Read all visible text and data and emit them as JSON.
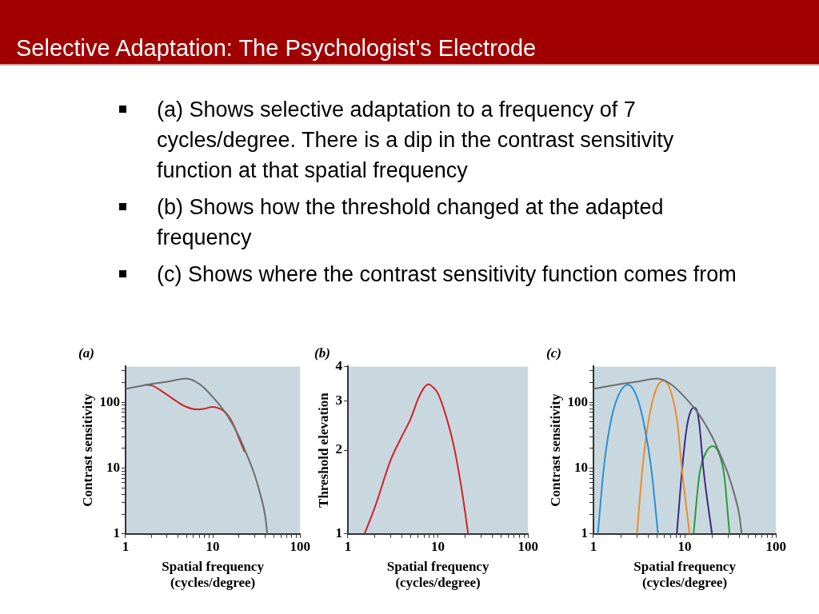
{
  "chart_data": [
    {
      "type": "line",
      "title": "(a)",
      "xlabel": "Spatial frequency\n(cycles/degree)",
      "ylabel": "Contrast sensitivity",
      "log": "xy",
      "marker": "none",
      "legend": false,
      "annotations": [
        "Selective Adaptation: The Psychologist’s Electrode",
        "(a) Shows selective adaptation to a frequency of 7 cycles/degree. There is a dip in the contrast sensitivity function at that spatial frequency",
        "(b) Shows how the threshold changed at the adapted frequency",
        "(c) Shows where the contrast sensitivity function comes from"
      ],
      "xlim": [
        1,
        100
      ],
      "xticks": [
        1,
        {
          "value": 2,
          "label": null
        },
        {
          "value": 3,
          "label": null
        },
        {
          "value": 4,
          "label": null
        },
        {
          "value": 5,
          "label": null
        },
        {
          "value": 6,
          "label": null
        },
        {
          "value": 7,
          "label": null
        },
        {
          "value": 8,
          "label": null
        },
        {
          "value": 9,
          "label": null
        },
        10,
        {
          "value": 20,
          "label": null
        },
        {
          "value": 30,
          "label": null
        },
        {
          "value": 40,
          "label": null
        },
        {
          "value": 50,
          "label": null
        },
        {
          "value": 60,
          "label": null
        },
        {
          "value": 70,
          "label": null
        },
        {
          "value": 80,
          "label": null
        },
        {
          "value": 90,
          "label": null
        },
        100
      ],
      "ylim": [
        1,
        350
      ],
      "yticks": [
        1,
        {
          "value": 2,
          "label": null
        },
        {
          "value": 3,
          "label": null
        },
        {
          "value": 4,
          "label": null
        },
        {
          "value": 5,
          "label": null
        },
        {
          "value": 6,
          "label": null
        },
        {
          "value": 7,
          "label": null
        },
        {
          "value": 8,
          "label": null
        },
        {
          "value": 9,
          "label": null
        },
        10,
        {
          "value": 20,
          "label": null
        },
        {
          "value": 30,
          "label": null
        },
        {
          "value": 40,
          "label": null
        },
        {
          "value": 50,
          "label": null
        },
        {
          "value": 60,
          "label": null
        },
        {
          "value": 70,
          "label": null
        },
        {
          "value": 80,
          "label": null
        },
        {
          "value": 90,
          "label": null
        },
        100,
        {
          "value": 200,
          "label": null
        },
        {
          "value": 300,
          "label": null
        }
      ],
      "series": [
        {
          "color": "#6d6d6d",
          "x": [
            1,
            2,
            3,
            5,
            7,
            10,
            15,
            20,
            25,
            30,
            35,
            40,
            42
          ],
          "values": [
            160,
            190,
            205,
            230,
            190,
            120,
            60,
            30,
            15,
            8,
            4,
            1.8,
            1
          ]
        },
        {
          "color": "#d42027",
          "x": [
            1.7,
            2,
            3,
            4,
            5,
            6.5,
            8,
            10,
            12,
            14,
            16,
            18,
            20,
            23
          ],
          "values": [
            185,
            180,
            130,
            100,
            85,
            78,
            80,
            85,
            80,
            70,
            55,
            40,
            28,
            18
          ]
        }
      ]
    },
    {
      "type": "line",
      "title": "(b)",
      "xlabel": "Spatial frequency\n(cycles/degree)",
      "ylabel": "Threshold elevation",
      "log": "xy",
      "marker": "none",
      "legend": false,
      "xlim": [
        1,
        100
      ],
      "xticks": [
        1,
        {
          "value": 2,
          "label": null
        },
        {
          "value": 3,
          "label": null
        },
        {
          "value": 4,
          "label": null
        },
        {
          "value": 5,
          "label": null
        },
        {
          "value": 6,
          "label": null
        },
        {
          "value": 7,
          "label": null
        },
        {
          "value": 8,
          "label": null
        },
        {
          "value": 9,
          "label": null
        },
        10,
        {
          "value": 20,
          "label": null
        },
        {
          "value": 30,
          "label": null
        },
        {
          "value": 40,
          "label": null
        },
        {
          "value": 50,
          "label": null
        },
        {
          "value": 60,
          "label": null
        },
        {
          "value": 70,
          "label": null
        },
        {
          "value": 80,
          "label": null
        },
        {
          "value": 90,
          "label": null
        },
        100
      ],
      "ylim": [
        1,
        4
      ],
      "yticks": [
        1,
        2,
        3,
        4
      ],
      "series": [
        {
          "color": "#d42027",
          "x": [
            1.53,
            2,
            3,
            4,
            5,
            6,
            7,
            7.8,
            9,
            10,
            12,
            15,
            18,
            20,
            21.6
          ],
          "values": [
            1,
            1.25,
            1.85,
            2.25,
            2.6,
            3.05,
            3.35,
            3.45,
            3.35,
            3.2,
            2.72,
            2.07,
            1.5,
            1.2,
            1
          ]
        }
      ]
    },
    {
      "type": "line",
      "title": "(c)",
      "xlabel": "Spatial frequency\n(cycles/degree)",
      "ylabel": "Contrast sensitivity",
      "log": "xy",
      "marker": "none",
      "legend": false,
      "xlim": [
        1,
        100
      ],
      "xticks": [
        1,
        {
          "value": 2,
          "label": null
        },
        {
          "value": 3,
          "label": null
        },
        {
          "value": 4,
          "label": null
        },
        {
          "value": 5,
          "label": null
        },
        {
          "value": 6,
          "label": null
        },
        {
          "value": 7,
          "label": null
        },
        {
          "value": 8,
          "label": null
        },
        {
          "value": 9,
          "label": null
        },
        10,
        {
          "value": 20,
          "label": null
        },
        {
          "value": 30,
          "label": null
        },
        {
          "value": 40,
          "label": null
        },
        {
          "value": 50,
          "label": null
        },
        {
          "value": 60,
          "label": null
        },
        {
          "value": 70,
          "label": null
        },
        {
          "value": 80,
          "label": null
        },
        {
          "value": 90,
          "label": null
        },
        100
      ],
      "ylim": [
        1,
        350
      ],
      "yticks": [
        1,
        {
          "value": 2,
          "label": null
        },
        {
          "value": 3,
          "label": null
        },
        {
          "value": 4,
          "label": null
        },
        {
          "value": 5,
          "label": null
        },
        {
          "value": 6,
          "label": null
        },
        {
          "value": 7,
          "label": null
        },
        {
          "value": 8,
          "label": null
        },
        {
          "value": 9,
          "label": null
        },
        10,
        {
          "value": 20,
          "label": null
        },
        {
          "value": 30,
          "label": null
        },
        {
          "value": 40,
          "label": null
        },
        {
          "value": 50,
          "label": null
        },
        {
          "value": 60,
          "label": null
        },
        {
          "value": 70,
          "label": null
        },
        {
          "value": 80,
          "label": null
        },
        {
          "value": 90,
          "label": null
        },
        100,
        {
          "value": 200,
          "label": null
        },
        {
          "value": 300,
          "label": null
        }
      ],
      "series": [
        {
          "color": "#6d6d6d",
          "x": [
            1,
            2,
            3,
            5,
            7,
            10,
            15,
            20,
            25,
            30,
            35,
            40,
            42
          ],
          "values": [
            160,
            190,
            205,
            230,
            190,
            120,
            60,
            30,
            15,
            8,
            4,
            1.8,
            1
          ]
        },
        {
          "color": "#2a8fd0",
          "x": [
            1.12,
            1.3,
            1.5,
            1.8,
            2.4,
            3,
            3.6,
            4.3,
            5.1
          ],
          "values": [
            1,
            10,
            40,
            110,
            185,
            120,
            45,
            10,
            1
          ]
        },
        {
          "color": "#f08a24",
          "x": [
            3,
            3.45,
            4,
            4.8,
            5.9,
            7,
            8.3,
            9.3,
            11.3
          ],
          "values": [
            1,
            10,
            50,
            150,
            215,
            150,
            50,
            10,
            1
          ]
        },
        {
          "color": "#3c2a80",
          "x": [
            8.2,
            9.4,
            10.5,
            11.5,
            12.7,
            13.8,
            14.5,
            16,
            19.9
          ],
          "values": [
            1,
            10,
            40,
            70,
            83,
            70,
            45,
            10,
            1
          ]
        },
        {
          "color": "#2a9a3c",
          "x": [
            12.5,
            14.5,
            17,
            20.4,
            24,
            27,
            31
          ],
          "values": [
            1,
            8,
            17,
            21.6,
            16,
            8,
            1
          ]
        }
      ]
    }
  ]
}
